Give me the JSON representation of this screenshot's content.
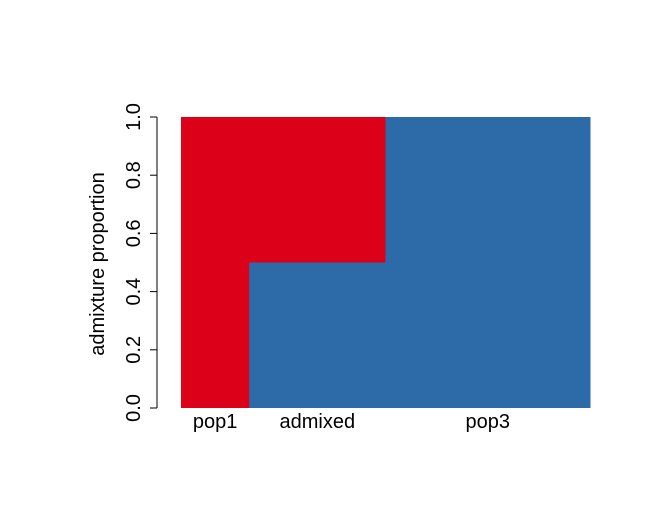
{
  "chart_data": {
    "type": "bar",
    "subtype": "stacked-100-percent",
    "title": "",
    "xlabel": "",
    "ylabel": "admixture proportion",
    "ylim": [
      0,
      1
    ],
    "yticks": [
      0.0,
      0.2,
      0.4,
      0.6,
      0.8,
      1.0
    ],
    "ytick_labels": [
      "0.0",
      "0.2",
      "0.4",
      "0.6",
      "0.8",
      "1.0"
    ],
    "grid": false,
    "legend": "none",
    "groups": [
      {
        "label": "pop1",
        "width": 1,
        "blue": 0.0,
        "red": 1.0
      },
      {
        "label": "admixed",
        "width": 2,
        "blue": 0.5,
        "red": 0.5
      },
      {
        "label": "pop3",
        "width": 3,
        "blue": 1.0,
        "red": 0.0
      }
    ],
    "colors": {
      "red": "#dc0018",
      "blue": "#2c6ba8"
    }
  }
}
